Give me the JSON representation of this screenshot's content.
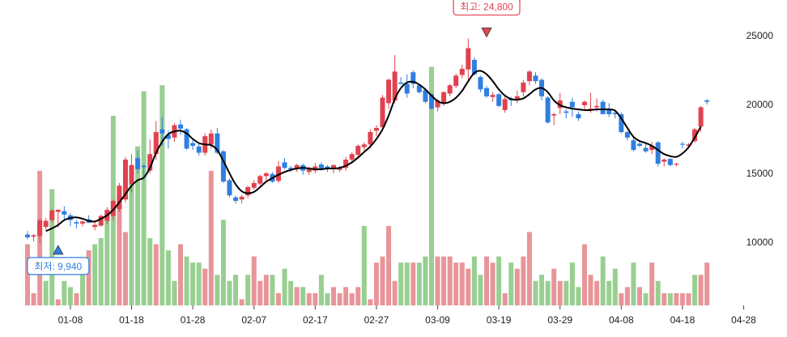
{
  "chart_data": {
    "type": "candlestick",
    "colors": {
      "up": "#e0424f",
      "down": "#2f7fe0",
      "volume_up": "#e8959a",
      "volume_down": "#98cf91",
      "moving_average": "#000000",
      "high_callout": "#e0424f",
      "low_callout": "#2f7fe0"
    },
    "y_axis": {
      "side": "right",
      "ticks": [
        25000,
        20000,
        15000,
        10000
      ],
      "range": [
        5400,
        27600
      ]
    },
    "x_axis": {
      "ticks": [
        "01-08",
        "01-18",
        "01-28",
        "02-07",
        "02-17",
        "02-27",
        "03-09",
        "03-19",
        "03-29",
        "04-08",
        "04-18",
        "04-28"
      ]
    },
    "annotations": {
      "high": {
        "label": "최고: 24,800",
        "value": 24800,
        "index": 75
      },
      "low": {
        "label": "최저: 9,940",
        "value": 9940,
        "index": 5
      }
    },
    "candles": {
      "open": [
        10550,
        10400,
        10450,
        11100,
        11600,
        12200,
        12250,
        11950,
        11450,
        11350,
        11650,
        11100,
        11200,
        11550,
        11900,
        12400,
        13100,
        14200,
        16100,
        15550,
        15200,
        16400,
        18200,
        17800,
        17600,
        18550,
        18200,
        17200,
        16950,
        16500,
        17100,
        17900,
        16600,
        14500,
        13250,
        13100,
        13400,
        13950,
        14250,
        14800,
        14950,
        14450,
        15800,
        15400,
        15350,
        15600,
        15100,
        15200,
        15650,
        15500,
        15400,
        15250,
        15400,
        16000,
        16350,
        16900,
        17100,
        18100,
        18350,
        20100,
        20300,
        21600,
        21500,
        22350,
        21400,
        21050,
        20750,
        19800,
        20100,
        20800,
        21350,
        22150,
        22550,
        23250,
        22000,
        21200,
        20550,
        20750,
        19600,
        20450,
        20350,
        20900,
        21700,
        22100,
        21800,
        20500,
        19200,
        19750,
        19500,
        20200,
        19300,
        19950,
        19600,
        19800,
        20200,
        19650,
        19400,
        19300,
        18000,
        17400,
        17150,
        16850,
        16700,
        17250,
        15850,
        16050,
        15650,
        17150,
        17000,
        17350,
        18400,
        20300
      ],
      "high": [
        10800,
        10600,
        11700,
        11750,
        12400,
        12400,
        12600,
        12100,
        11600,
        11550,
        11950,
        11450,
        12000,
        12550,
        13100,
        14300,
        16200,
        16400,
        16650,
        15650,
        17450,
        18800,
        19100,
        18100,
        18650,
        18900,
        18300,
        17500,
        17200,
        17900,
        18200,
        18300,
        16700,
        14650,
        13400,
        13450,
        14100,
        14500,
        14900,
        15100,
        15100,
        15900,
        16100,
        15550,
        15700,
        15700,
        15500,
        15750,
        15800,
        15600,
        15650,
        15550,
        16200,
        16550,
        17100,
        17250,
        18200,
        18500,
        20700,
        21900,
        23600,
        22000,
        22200,
        22500,
        21500,
        21200,
        20800,
        20400,
        20950,
        21500,
        22250,
        22900,
        24800,
        23400,
        22100,
        21350,
        20900,
        20850,
        20600,
        20550,
        21000,
        21800,
        22500,
        22350,
        21900,
        20600,
        19400,
        20850,
        19650,
        20500,
        19500,
        20300,
        20850,
        20450,
        20350,
        20100,
        19600,
        19450,
        18100,
        17600,
        17300,
        17200,
        17300,
        17350,
        16100,
        16100,
        15750,
        17300,
        17200,
        18300,
        19900,
        20400
      ],
      "low": [
        10200,
        10050,
        9940,
        10900,
        11400,
        11050,
        11650,
        11150,
        11000,
        11150,
        11400,
        10850,
        11100,
        11300,
        11600,
        12200,
        12900,
        13600,
        15000,
        14500,
        15000,
        16000,
        17000,
        16800,
        17300,
        17800,
        16700,
        16700,
        16300,
        16300,
        16800,
        16400,
        14300,
        13250,
        12800,
        12800,
        13200,
        13800,
        14100,
        14500,
        14300,
        14300,
        15300,
        15100,
        15100,
        14900,
        14900,
        15000,
        15200,
        15100,
        15000,
        15100,
        15200,
        15700,
        16100,
        16500,
        16800,
        17700,
        18200,
        19700,
        20100,
        21500,
        20500,
        21200,
        20800,
        20100,
        19600,
        19500,
        19900,
        20600,
        21200,
        21900,
        21800,
        22100,
        20900,
        20500,
        20200,
        19800,
        19400,
        19900,
        20100,
        20600,
        21400,
        21500,
        20300,
        18600,
        18500,
        19300,
        19000,
        19100,
        18800,
        19600,
        19400,
        19500,
        19300,
        19100,
        19000,
        17900,
        17400,
        16600,
        16900,
        16500,
        16400,
        15500,
        15500,
        15500,
        15500,
        16800,
        16800,
        17200,
        18000,
        20000
      ],
      "close": [
        10350,
        10500,
        11600,
        11550,
        12300,
        12350,
        12000,
        11600,
        11350,
        11500,
        11400,
        11250,
        11900,
        12350,
        13000,
        14100,
        16000,
        15600,
        15300,
        15450,
        16400,
        18000,
        17900,
        17500,
        18500,
        18250,
        16800,
        17000,
        16500,
        17700,
        17900,
        16500,
        14400,
        13400,
        13000,
        13300,
        14000,
        14300,
        14800,
        15000,
        14400,
        15500,
        15400,
        15300,
        15600,
        15200,
        15300,
        15500,
        15300,
        15300,
        15600,
        15400,
        16000,
        16400,
        17000,
        17100,
        18000,
        18300,
        20500,
        21800,
        22400,
        21500,
        20800,
        21500,
        20900,
        20200,
        19700,
        20300,
        20900,
        21400,
        22100,
        22600,
        24100,
        22200,
        21100,
        20600,
        20700,
        19900,
        20400,
        20300,
        20600,
        21600,
        22400,
        21700,
        20600,
        18700,
        19300,
        20300,
        19400,
        19800,
        19000,
        20200,
        19700,
        19900,
        19300,
        19300,
        19300,
        18000,
        17600,
        16700,
        17000,
        16600,
        17000,
        15700,
        16000,
        15600,
        15700,
        17100,
        17100,
        18200,
        19800,
        20200
      ]
    },
    "moving_average": [
      null,
      null,
      null,
      10800,
      11000,
      11250,
      11600,
      11750,
      11800,
      11700,
      11550,
      11500,
      11700,
      11950,
      12350,
      12900,
      13500,
      14100,
      14500,
      14700,
      15400,
      16500,
      17300,
      17850,
      18050,
      18100,
      17900,
      17500,
      17200,
      17100,
      17050,
      16700,
      15900,
      15000,
      14200,
      13700,
      13550,
      13650,
      14000,
      14400,
      14650,
      14900,
      15100,
      15250,
      15350,
      15400,
      15350,
      15300,
      15300,
      15350,
      15350,
      15400,
      15550,
      15800,
      16150,
      16550,
      16950,
      17500,
      18200,
      19200,
      20400,
      21200,
      21600,
      21650,
      21450,
      21100,
      20650,
      20250,
      20100,
      20200,
      20500,
      21000,
      21700,
      22300,
      22450,
      22200,
      21700,
      21100,
      20650,
      20400,
      20350,
      20450,
      20750,
      21100,
      21200,
      20900,
      20300,
      19950,
      19800,
      19700,
      19650,
      19600,
      19600,
      19650,
      19650,
      19650,
      19550,
      19000,
      18300,
      17650,
      17350,
      17200,
      17000,
      16700,
      16400,
      16250,
      16200,
      16450,
      16900,
      17600,
      18400,
      null
    ],
    "volume": [
      10,
      2,
      22,
      4,
      19,
      1,
      4,
      3,
      2,
      5,
      9,
      10,
      11,
      15,
      31,
      18,
      12,
      20,
      26,
      35,
      11,
      10,
      36,
      9,
      4,
      10,
      8,
      7,
      7,
      6,
      22,
      5,
      14,
      4,
      5,
      1,
      5,
      8,
      4,
      5,
      5,
      2,
      6,
      4,
      3,
      3,
      2,
      2,
      5,
      2,
      3,
      2,
      3,
      2,
      3,
      13,
      1,
      7,
      8,
      13,
      4,
      7,
      7,
      7,
      7,
      8,
      39,
      8,
      8,
      8,
      7,
      7,
      6,
      8,
      5,
      8,
      7,
      8,
      2,
      7,
      6,
      8,
      12,
      4,
      5,
      4,
      6,
      4,
      4,
      7,
      3,
      10,
      5,
      4,
      8,
      4,
      6,
      2,
      3,
      7,
      3,
      2,
      7,
      4,
      2,
      2,
      2,
      2,
      2,
      5,
      5,
      7
    ],
    "volume_up": [
      1,
      1,
      1,
      0,
      0,
      1,
      0,
      0,
      1,
      0,
      1,
      0,
      0,
      0,
      0,
      1,
      1,
      0,
      0,
      0,
      0,
      1,
      0,
      0,
      0,
      1,
      0,
      0,
      0,
      1,
      1,
      0,
      0,
      0,
      0,
      1,
      0,
      1,
      1,
      1,
      0,
      1,
      0,
      0,
      1,
      0,
      1,
      1,
      0,
      0,
      1,
      1,
      1,
      1,
      1,
      0,
      1,
      1,
      1,
      1,
      1,
      0,
      0,
      1,
      0,
      0,
      0,
      1,
      1,
      1,
      1,
      1,
      1,
      0,
      0,
      1,
      1,
      0,
      1,
      0,
      1,
      1,
      1,
      0,
      0,
      0,
      1,
      1,
      0,
      0,
      0,
      1,
      1,
      1,
      0,
      0,
      0,
      1,
      1,
      0,
      1,
      0,
      1,
      0,
      1,
      0,
      1,
      1,
      1,
      0,
      1,
      1
    ]
  }
}
